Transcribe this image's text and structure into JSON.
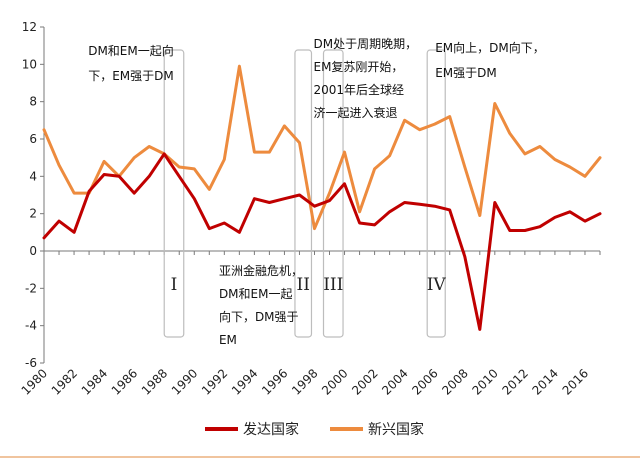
{
  "chart_data": {
    "type": "line",
    "x": [
      1980,
      1981,
      1982,
      1983,
      1984,
      1985,
      1986,
      1987,
      1988,
      1989,
      1990,
      1991,
      1992,
      1993,
      1994,
      1995,
      1996,
      1997,
      1998,
      1999,
      2000,
      2001,
      2002,
      2003,
      2004,
      2005,
      2006,
      2007,
      2008,
      2009,
      2010,
      2011,
      2012,
      2013,
      2014,
      2015,
      2016,
      2017
    ],
    "xticks": [
      "1980",
      "1982",
      "1984",
      "1986",
      "1988",
      "1990",
      "1992",
      "1994",
      "1996",
      "1998",
      "2000",
      "2002",
      "2004",
      "2006",
      "2008",
      "2010",
      "2012",
      "2014",
      "2016"
    ],
    "yticks": [
      "12",
      "10",
      "8",
      "6",
      "4",
      "2",
      "0",
      "-2",
      "-4",
      "-6"
    ],
    "ylim": [
      -6,
      12
    ],
    "series": [
      {
        "name": "发达国家",
        "color": "#c00000",
        "values": [
          0.7,
          1.6,
          1.0,
          3.2,
          4.1,
          4.0,
          3.1,
          4.0,
          5.2,
          4.0,
          2.8,
          1.2,
          1.5,
          1.0,
          2.8,
          2.6,
          2.8,
          3.0,
          2.4,
          2.7,
          3.6,
          1.5,
          1.4,
          2.1,
          2.6,
          2.5,
          2.4,
          2.2,
          -0.3,
          -4.2,
          2.6,
          1.1,
          1.1,
          1.3,
          1.8,
          2.1,
          1.6,
          2.0
        ]
      },
      {
        "name": "新兴国家",
        "color": "#ed8b3e",
        "values": [
          6.5,
          4.6,
          3.1,
          3.1,
          4.8,
          4.0,
          5.0,
          5.6,
          5.2,
          4.5,
          4.4,
          3.3,
          4.9,
          9.9,
          5.3,
          5.3,
          6.7,
          5.8,
          1.2,
          3.1,
          5.3,
          2.1,
          4.4,
          5.1,
          7.0,
          6.5,
          6.8,
          7.2,
          4.5,
          1.9,
          7.9,
          6.3,
          5.2,
          5.6,
          4.9,
          4.5,
          4.0,
          5.0
        ]
      }
    ],
    "grid": false,
    "legend": "bottom",
    "periods": [
      {
        "label": "I",
        "from": 1988.0,
        "to": 1989.3,
        "text": [
          "DM和EM一起向",
          "下，EM强于DM"
        ],
        "text_pos": "top-left"
      },
      {
        "label": "II",
        "from": 1996.7,
        "to": 1997.8,
        "text": [
          "亚洲金融危机，",
          "DM和EM一起",
          "向下，DM强于",
          "EM"
        ],
        "text_pos": "bottom-left"
      },
      {
        "label": "III",
        "from": 1998.6,
        "to": 1999.9,
        "text": [
          "DM处于周期晚期，",
          "EM复苏刚开始，",
          "2001年后全球经",
          "济一起进入衰退"
        ],
        "text_pos": "top-left"
      },
      {
        "label": "IV",
        "from": 2005.5,
        "to": 2006.7,
        "text": [
          "EM向上，DM向下，",
          "EM强于DM"
        ],
        "text_pos": "top-right"
      }
    ]
  },
  "colors": {
    "axis": "#7a7a7a",
    "box": "#bdbdbd",
    "bottom_rule": "#e08a3c"
  }
}
